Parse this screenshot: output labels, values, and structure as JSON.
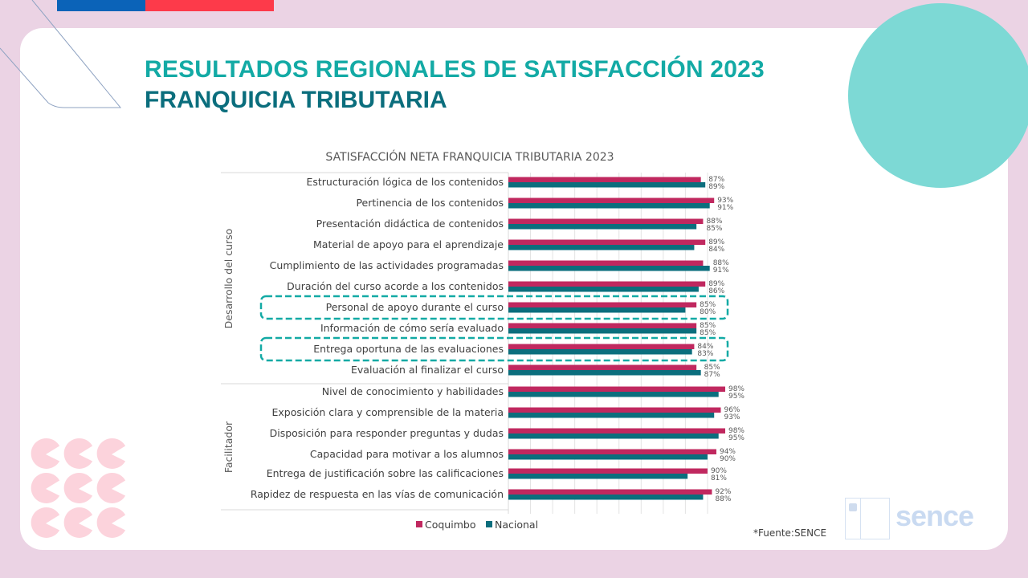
{
  "header": {
    "title_line1": "RESULTADOS REGIONALES DE SATISFACCIÓN 2023",
    "title_line2": "FRANQUICIA TRIBUTARIA"
  },
  "colors": {
    "coquimbo": "#c0285f",
    "nacional": "#0b6e7d",
    "highlight": "#13aaa5",
    "title_primary": "#13aaa5",
    "title_secondary": "#0b6e7d"
  },
  "chart_data": {
    "type": "bar",
    "orientation": "horizontal",
    "title": "SATISFACCIÓN NETA FRANQUICIA TRIBUTARIA 2023",
    "xlabel": "",
    "ylabel": "",
    "xlim": [
      0,
      100
    ],
    "unit": "%",
    "grid": true,
    "legend": "bottom-left",
    "groups": [
      {
        "name": "Desarrollo del curso",
        "start": 0,
        "end": 9
      },
      {
        "name": "Facilitador",
        "start": 10,
        "end": 15
      }
    ],
    "categories": [
      "Estructuración lógica de los contenidos",
      "Pertinencia de los contenidos",
      "Presentación didáctica de contenidos",
      "Material de apoyo para el aprendizaje",
      "Cumplimiento de las actividades programadas",
      "Duración del curso acorde a los contenidos",
      "Personal de apoyo durante el curso",
      "Información de cómo sería evaluado",
      "Entrega oportuna de las evaluaciones",
      "Evaluación al finalizar el curso",
      "Nivel de conocimiento y habilidades",
      "Exposición clara y comprensible de la materia",
      "Disposición para responder preguntas y dudas",
      "Capacidad para motivar a los alumnos",
      "Entrega de justificación sobre las calificaciones",
      "Rapidez de respuesta en las vías de comunicación"
    ],
    "series": [
      {
        "name": "Coquimbo",
        "values": [
          87,
          93,
          88,
          89,
          88,
          89,
          85,
          85,
          84,
          85,
          98,
          96,
          98,
          94,
          90,
          92
        ]
      },
      {
        "name": "Nacional",
        "values": [
          89,
          91,
          85,
          84,
          91,
          86,
          80,
          85,
          83,
          87,
          95,
          93,
          95,
          90,
          81,
          88
        ]
      }
    ],
    "highlighted_categories": [
      6,
      8
    ]
  },
  "footer": {
    "source": "*Fuente:SENCE",
    "logo_text": "sence"
  }
}
